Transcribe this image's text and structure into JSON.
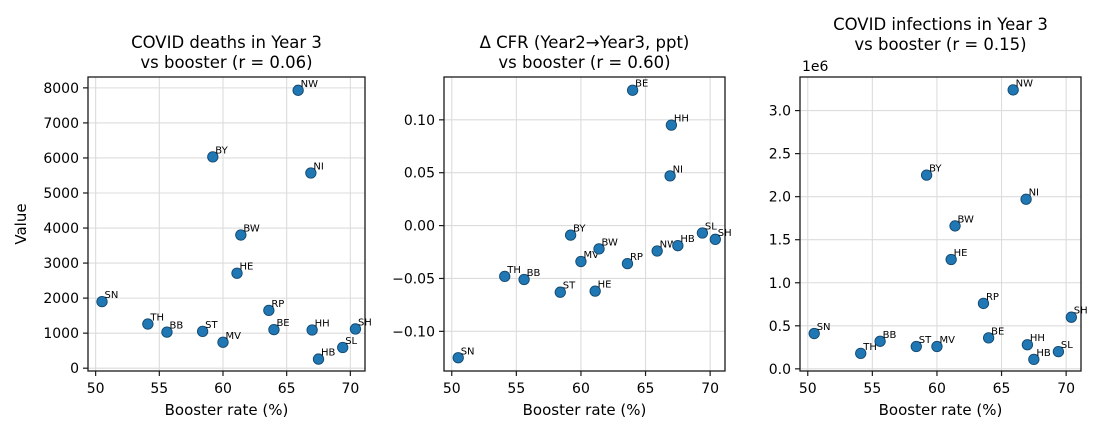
{
  "chart_data": {
    "type": "scatter",
    "layout": "1 row x 3 subplot scatter figure, shared x axis range, grid on, no legend",
    "x_axis": {
      "label": "Booster rate (%)",
      "ticks": [
        50,
        55,
        60,
        65,
        70
      ],
      "lim": [
        49.4,
        71.15
      ]
    },
    "point_labels": [
      "SN",
      "TH",
      "BB",
      "ST",
      "BY",
      "MV",
      "HE",
      "BW",
      "RP",
      "BE",
      "NW",
      "NI",
      "HH",
      "HB",
      "SL",
      "SH"
    ],
    "x_values_booster_pct": [
      50.5,
      54.1,
      55.6,
      58.4,
      59.2,
      60.0,
      61.1,
      61.4,
      63.6,
      64.0,
      65.9,
      66.9,
      67.0,
      67.5,
      69.4,
      70.4
    ],
    "style": {
      "point_color": "#1f77b4",
      "point_edge_color": "#14486e",
      "grid_color": "#dcdcdc",
      "spine_color": "#1a1a1a",
      "text_color": "#000000",
      "background": "#ffffff"
    },
    "charts": [
      {
        "title_line1": "COVID deaths in Year 3",
        "title_line2": "vs booster (r = 0.06)",
        "r_value": 0.06,
        "xlabel": "Booster rate (%)",
        "ylabel": "Value",
        "offset_text": "",
        "ylim": [
          -80,
          8310
        ],
        "yticks": [
          0,
          1000,
          2000,
          3000,
          4000,
          5000,
          6000,
          7000,
          8000
        ],
        "ytick_labels": [
          "0",
          "1000",
          "2000",
          "3000",
          "4000",
          "5000",
          "6000",
          "7000",
          "8000"
        ],
        "y_values": [
          1900,
          1260,
          1030,
          1050,
          6030,
          740,
          2710,
          3800,
          1650,
          1100,
          7930,
          5570,
          1090,
          260,
          590,
          1120
        ]
      },
      {
        "title_line1": "Δ CFR (Year2→Year3, ppt)",
        "title_line2": "vs booster (r = 0.60)",
        "r_value": 0.6,
        "xlabel": "Booster rate (%)",
        "ylabel": "",
        "offset_text": "",
        "ylim": [
          -0.1375,
          0.1405
        ],
        "yticks": [
          -0.1,
          -0.05,
          0.0,
          0.05,
          0.1
        ],
        "ytick_labels": [
          "−0.10",
          "−0.05",
          "0.00",
          "0.05",
          "0.10"
        ],
        "y_values": [
          -0.125,
          -0.048,
          -0.051,
          -0.063,
          -0.009,
          -0.034,
          -0.062,
          -0.022,
          -0.036,
          0.128,
          -0.024,
          0.047,
          0.095,
          -0.019,
          -0.007,
          -0.013
        ]
      },
      {
        "title_line1": "COVID infections in Year 3",
        "title_line2": "vs booster (r = 0.15)",
        "r_value": 0.15,
        "xlabel": "Booster rate (%)",
        "ylabel": "",
        "offset_text": "1e6",
        "ylim": [
          -25000,
          3390000
        ],
        "yticks": [
          0,
          500000,
          1000000,
          1500000,
          2000000,
          2500000,
          3000000
        ],
        "ytick_labels": [
          "0.0",
          "0.5",
          "1.0",
          "1.5",
          "2.0",
          "2.5",
          "3.0"
        ],
        "y_values": [
          410000,
          180000,
          320000,
          260000,
          2250000,
          260000,
          1270000,
          1660000,
          760000,
          360000,
          3240000,
          1970000,
          280000,
          110000,
          200000,
          600000
        ]
      }
    ]
  }
}
